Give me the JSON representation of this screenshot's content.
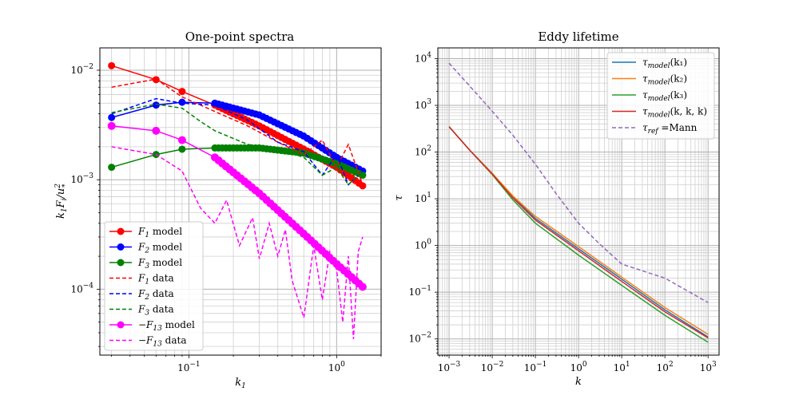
{
  "chart_data": [
    {
      "type": "line",
      "title": "One-point spectra",
      "xlabel": "k₁",
      "ylabel": "k₁Fᵢ/u₁²",
      "xscale": "log",
      "yscale": "log",
      "xlim": [
        0.025,
        2.0
      ],
      "ylim": [
        2.5e-05,
        0.016
      ],
      "grid": true,
      "legend_position": "lower-left",
      "xticks": [
        {
          "v": 0.1,
          "b": "10",
          "e": "−1"
        },
        {
          "v": 1,
          "b": "10",
          "e": "0"
        }
      ],
      "yticks": [
        {
          "v": 0.0001,
          "b": "10",
          "e": "−4"
        },
        {
          "v": 0.001,
          "b": "10",
          "e": "−3"
        },
        {
          "v": 0.01,
          "b": "10",
          "e": "−2"
        }
      ],
      "series": [
        {
          "name": "F1 model",
          "color": "#ff0000",
          "style": "solid-marker",
          "x": [
            0.03,
            0.06,
            0.09,
            0.15,
            0.3,
            0.6,
            1.0,
            1.5
          ],
          "y": [
            0.011,
            0.0082,
            0.0064,
            0.0048,
            0.0031,
            0.0019,
            0.0013,
            0.00088
          ]
        },
        {
          "name": "F2 model",
          "color": "#0000ff",
          "style": "solid-marker",
          "x": [
            0.03,
            0.06,
            0.09,
            0.15,
            0.3,
            0.6,
            1.0,
            1.5
          ],
          "y": [
            0.0037,
            0.0048,
            0.0051,
            0.005,
            0.0039,
            0.0025,
            0.0016,
            0.0012
          ]
        },
        {
          "name": "F3 model",
          "color": "#008000",
          "style": "solid-marker",
          "x": [
            0.03,
            0.06,
            0.09,
            0.15,
            0.3,
            0.6,
            1.0,
            1.5
          ],
          "y": [
            0.0013,
            0.0017,
            0.0019,
            0.00195,
            0.00195,
            0.00175,
            0.0014,
            0.0011
          ]
        },
        {
          "name": "F1 data",
          "color": "#ff0000",
          "style": "dashed",
          "x": [
            0.03,
            0.06,
            0.09,
            0.15,
            0.25,
            0.4,
            0.6,
            0.8,
            1.0,
            1.2,
            1.5
          ],
          "y": [
            0.007,
            0.0083,
            0.0057,
            0.0042,
            0.0031,
            0.0022,
            0.0017,
            0.0023,
            0.0013,
            0.0021,
            0.0009
          ]
        },
        {
          "name": "F2 data",
          "color": "#0000ff",
          "style": "dashed",
          "x": [
            0.03,
            0.06,
            0.09,
            0.15,
            0.25,
            0.4,
            0.6,
            0.8,
            1.0,
            1.2,
            1.5
          ],
          "y": [
            0.004,
            0.0055,
            0.005,
            0.0048,
            0.0035,
            0.0022,
            0.0018,
            0.0011,
            0.0017,
            0.0009,
            0.0012
          ]
        },
        {
          "name": "F3 data",
          "color": "#008000",
          "style": "dashed",
          "x": [
            0.03,
            0.06,
            0.09,
            0.12,
            0.15,
            0.25,
            0.4,
            0.6,
            0.8,
            1.0,
            1.2,
            1.5
          ],
          "y": [
            0.0041,
            0.0049,
            0.0045,
            0.0034,
            0.0028,
            0.0021,
            0.0019,
            0.0016,
            0.0011,
            0.0013,
            0.0009,
            0.0012
          ]
        },
        {
          "name": "−F13 model",
          "color": "#ff00ff",
          "style": "solid-marker",
          "x": [
            0.03,
            0.06,
            0.09,
            0.15,
            0.3,
            0.6,
            1.0,
            1.5
          ],
          "y": [
            0.0031,
            0.0028,
            0.0023,
            0.0016,
            0.00075,
            0.00032,
            0.00017,
            0.000105
          ]
        },
        {
          "name": "−F13 data",
          "color": "#ff00ff",
          "style": "dashed",
          "x": [
            0.03,
            0.06,
            0.09,
            0.12,
            0.15,
            0.18,
            0.22,
            0.27,
            0.3,
            0.35,
            0.4,
            0.45,
            0.5,
            0.6,
            0.7,
            0.8,
            0.9,
            1.0,
            1.1,
            1.2,
            1.3,
            1.4,
            1.5
          ],
          "y": [
            0.002,
            0.0017,
            0.0012,
            0.00055,
            0.0004,
            0.00065,
            0.00025,
            0.00045,
            0.00019,
            0.0004,
            0.0002,
            0.00035,
            0.00012,
            5.5e-05,
            0.00025,
            8e-05,
            0.00022,
            0.00015,
            5e-05,
            0.0002,
            3.5e-05,
            0.00022,
            0.0003
          ]
        }
      ]
    },
    {
      "type": "line",
      "title": "Eddy lifetime",
      "xlabel": "k",
      "ylabel": "τ",
      "xscale": "log",
      "yscale": "log",
      "xlim": [
        0.00055,
        1800
      ],
      "ylim": [
        0.0045,
        17000
      ],
      "grid": true,
      "legend_position": "top-right",
      "xticks": [
        {
          "v": 0.001,
          "b": "10",
          "e": "−3"
        },
        {
          "v": 0.01,
          "b": "10",
          "e": "−2"
        },
        {
          "v": 0.1,
          "b": "10",
          "e": "−1"
        },
        {
          "v": 1,
          "b": "10",
          "e": "0"
        },
        {
          "v": 10,
          "b": "10",
          "e": "1"
        },
        {
          "v": 100,
          "b": "10",
          "e": "2"
        },
        {
          "v": 1000,
          "b": "10",
          "e": "3"
        }
      ],
      "yticks": [
        {
          "v": 0.01,
          "b": "10",
          "e": "−2"
        },
        {
          "v": 0.1,
          "b": "10",
          "e": "−1"
        },
        {
          "v": 1,
          "b": "10",
          "e": "0"
        },
        {
          "v": 10,
          "b": "10",
          "e": "1"
        },
        {
          "v": 100,
          "b": "10",
          "e": "2"
        },
        {
          "v": 1000,
          "b": "10",
          "e": "3"
        },
        {
          "v": 10000,
          "b": "10",
          "e": "4"
        }
      ],
      "series": [
        {
          "name": "τmodel(k1)",
          "color": "#1f77b4",
          "style": "solid",
          "x": [
            0.001,
            0.003,
            0.01,
            0.03,
            0.1,
            1,
            10,
            100,
            1000
          ],
          "y": [
            350,
            110,
            35,
            11,
            3.8,
            0.85,
            0.19,
            0.042,
            0.011
          ]
        },
        {
          "name": "τmodel(k2)",
          "color": "#ff7f0e",
          "style": "solid",
          "x": [
            0.001,
            0.003,
            0.01,
            0.03,
            0.1,
            1,
            10,
            100,
            1000
          ],
          "y": [
            350,
            110,
            35,
            11.5,
            4.2,
            0.95,
            0.21,
            0.047,
            0.0125
          ]
        },
        {
          "name": "τmodel(k3)",
          "color": "#2ca02c",
          "style": "solid",
          "x": [
            0.001,
            0.003,
            0.01,
            0.03,
            0.1,
            1,
            10,
            100,
            1000
          ],
          "y": [
            350,
            110,
            33,
            9.5,
            3.0,
            0.62,
            0.14,
            0.032,
            0.0085
          ]
        },
        {
          "name": "τmodel(k, k, k)",
          "color": "#d62728",
          "style": "solid",
          "x": [
            0.001,
            0.003,
            0.01,
            0.03,
            0.1,
            1,
            10,
            100,
            1000
          ],
          "y": [
            350,
            110,
            34,
            10.5,
            3.5,
            0.77,
            0.17,
            0.038,
            0.0105
          ]
        },
        {
          "name": "τref =Mann",
          "color": "#9467bd",
          "style": "dashed",
          "x": [
            0.001,
            0.003,
            0.01,
            0.03,
            0.1,
            0.3,
            1,
            3,
            10,
            100,
            1000
          ],
          "y": [
            8000,
            2600,
            750,
            230,
            55,
            13,
            3.0,
            1.1,
            0.4,
            0.2,
            0.06
          ]
        }
      ]
    }
  ]
}
